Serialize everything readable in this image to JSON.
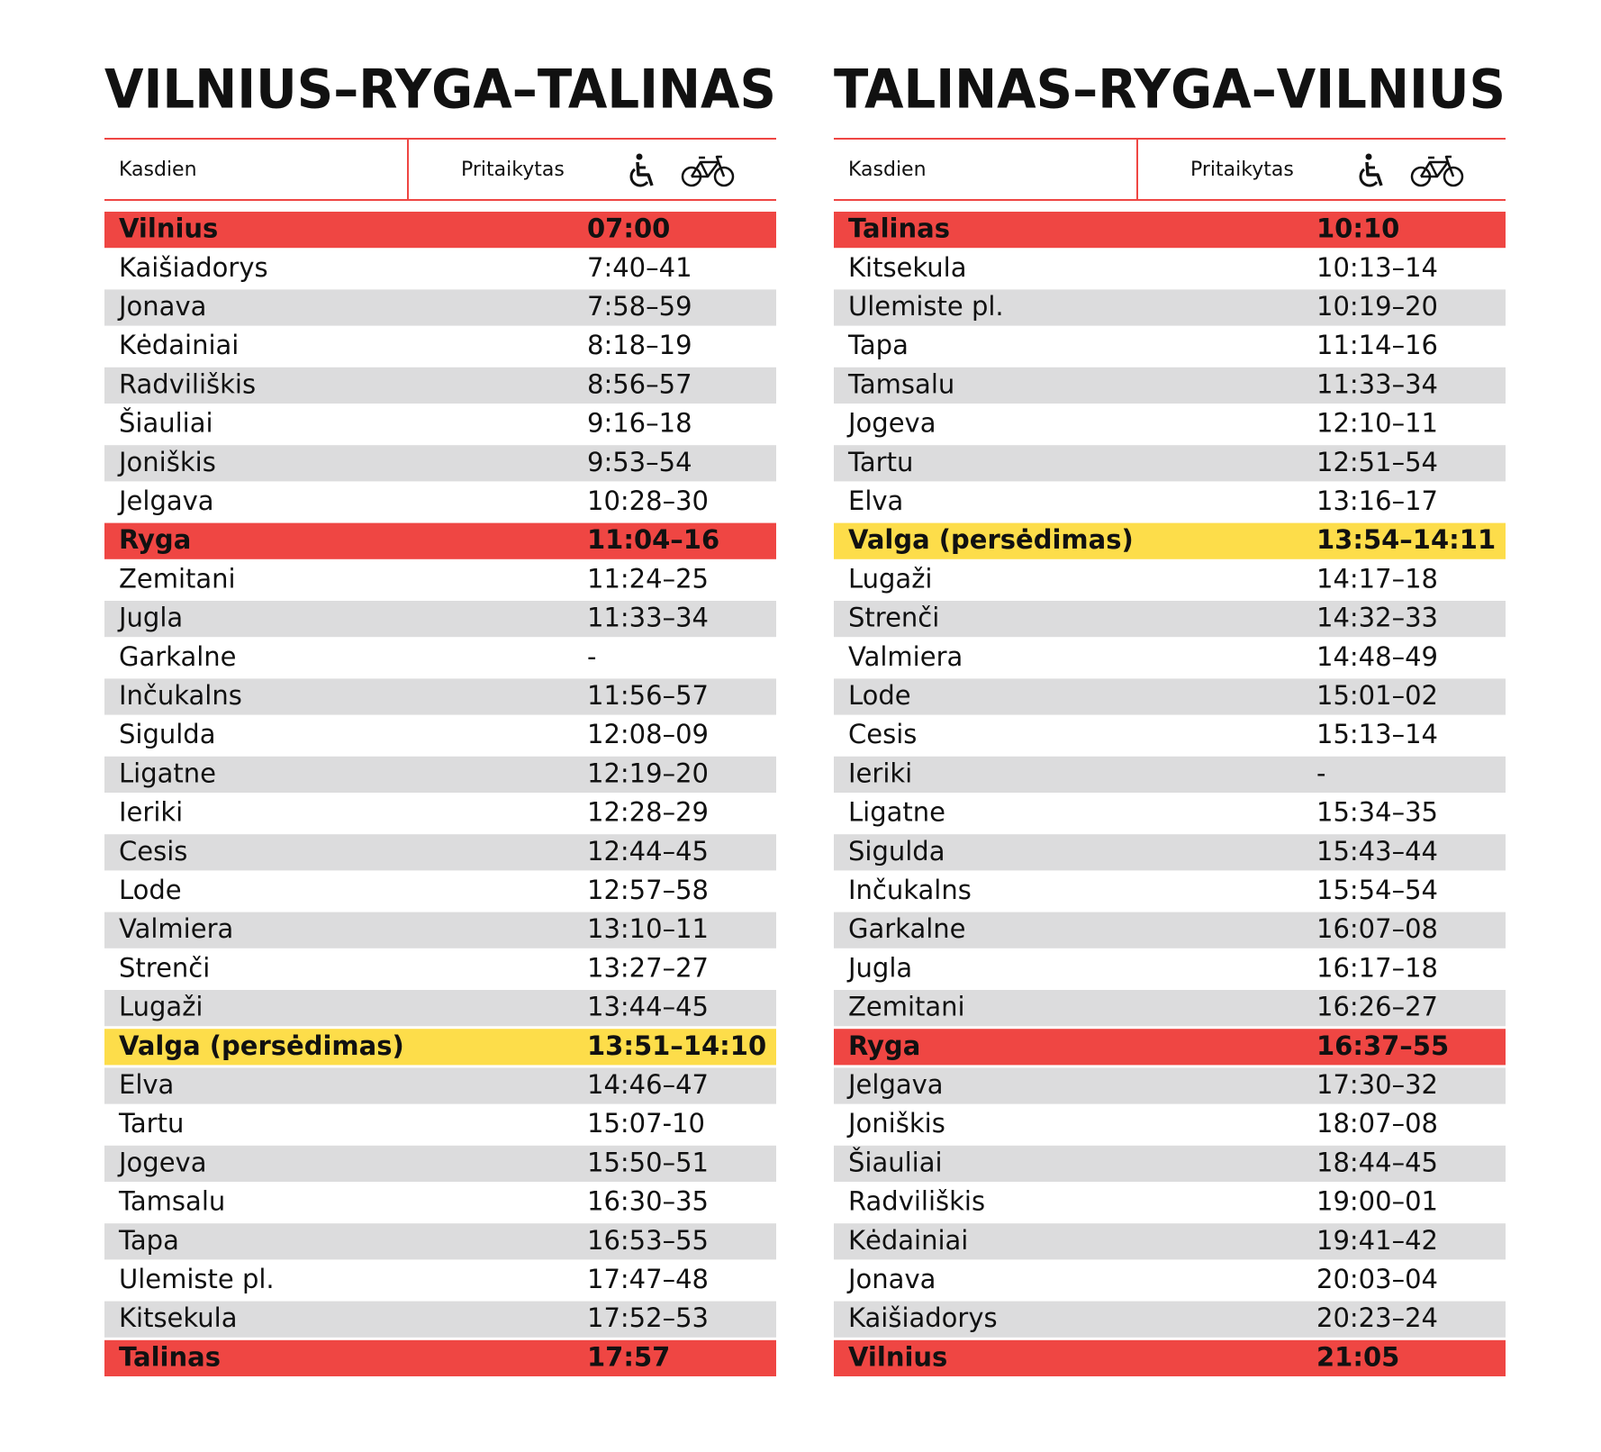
{
  "tables": [
    {
      "title": "VILNIUS–RYGA–TALINAS",
      "header": {
        "days": "Kasdien",
        "accessible": "Pritaikytas"
      },
      "rows": [
        {
          "station": "Vilnius",
          "time": "07:00",
          "fill": "#ef4643"
        },
        {
          "station": "Kaišiadorys",
          "time": "7:40–41"
        },
        {
          "station": "Jonava",
          "time": "7:58–59"
        },
        {
          "station": "Kėdainiai",
          "time": "8:18–19"
        },
        {
          "station": "Radviliškis",
          "time": "8:56–57"
        },
        {
          "station": "Šiauliai",
          "time": "9:16–18"
        },
        {
          "station": "Joniškis",
          "time": "9:53–54"
        },
        {
          "station": "Jelgava",
          "time": "10:28–30"
        },
        {
          "station": "Ryga",
          "time": "11:04–16",
          "fill": "#ef4643"
        },
        {
          "station": "Zemitani",
          "time": "11:24–25"
        },
        {
          "station": "Jugla",
          "time": "11:33–34"
        },
        {
          "station": "Garkalne",
          "time": "-"
        },
        {
          "station": "Inčukalns",
          "time": "11:56–57"
        },
        {
          "station": "Sigulda",
          "time": "12:08–09"
        },
        {
          "station": "Ligatne",
          "time": "12:19–20"
        },
        {
          "station": "Ieriki",
          "time": "12:28–29"
        },
        {
          "station": "Cesis",
          "time": "12:44–45"
        },
        {
          "station": "Lode",
          "time": "12:57–58"
        },
        {
          "station": "Valmiera",
          "time": "13:10–11"
        },
        {
          "station": "Strenči",
          "time": "13:27–27"
        },
        {
          "station": "Lugaži",
          "time": "13:44–45"
        },
        {
          "station": "Valga (persėdimas)",
          "time": "13:51–14:10",
          "fill": "#fddd4a"
        },
        {
          "station": "Elva",
          "time": "14:46–47"
        },
        {
          "station": "Tartu",
          "time": "15:07-10"
        },
        {
          "station": "Jogeva",
          "time": "15:50–51"
        },
        {
          "station": "Tamsalu",
          "time": "16:30–35"
        },
        {
          "station": "Tapa",
          "time": "16:53–55"
        },
        {
          "station": "Ulemiste pl.",
          "time": "17:47–48"
        },
        {
          "station": "Kitsekula",
          "time": "17:52–53"
        },
        {
          "station": "Talinas",
          "time": "17:57",
          "fill": "#ef4643"
        }
      ]
    },
    {
      "title": "TALINAS–RYGA–VILNIUS",
      "header": {
        "days": "Kasdien",
        "accessible": "Pritaikytas"
      },
      "rows": [
        {
          "station": "Talinas",
          "time": "10:10",
          "fill": "#ef4643"
        },
        {
          "station": "Kitsekula",
          "time": "10:13–14"
        },
        {
          "station": "Ulemiste pl.",
          "time": "10:19–20"
        },
        {
          "station": "Tapa",
          "time": "11:14–16"
        },
        {
          "station": "Tamsalu",
          "time": "11:33–34"
        },
        {
          "station": "Jogeva",
          "time": "12:10–11"
        },
        {
          "station": "Tartu",
          "time": "12:51–54"
        },
        {
          "station": "Elva",
          "time": "13:16–17"
        },
        {
          "station": "Valga (persėdimas)",
          "time": "13:54–14:11",
          "fill": "#fddd4a"
        },
        {
          "station": "Lugaži",
          "time": "14:17–18"
        },
        {
          "station": "Strenči",
          "time": "14:32–33"
        },
        {
          "station": "Valmiera",
          "time": "14:48–49"
        },
        {
          "station": "Lode",
          "time": "15:01–02"
        },
        {
          "station": "Cesis",
          "time": "15:13–14"
        },
        {
          "station": "Ieriki",
          "time": "-"
        },
        {
          "station": "Ligatne",
          "time": "15:34–35"
        },
        {
          "station": "Sigulda",
          "time": "15:43–44"
        },
        {
          "station": "Inčukalns",
          "time": "15:54–54"
        },
        {
          "station": "Garkalne",
          "time": "16:07–08"
        },
        {
          "station": "Jugla",
          "time": "16:17–18"
        },
        {
          "station": "Zemitani",
          "time": "16:26–27"
        },
        {
          "station": "Ryga",
          "time": "16:37–55",
          "fill": "#ef4643"
        },
        {
          "station": "Jelgava",
          "time": "17:30–32"
        },
        {
          "station": "Joniškis",
          "time": "18:07–08"
        },
        {
          "station": "Šiauliai",
          "time": "18:44–45"
        },
        {
          "station": "Radviliškis",
          "time": "19:00–01"
        },
        {
          "station": "Kėdainiai",
          "time": "19:41–42"
        },
        {
          "station": "Jonava",
          "time": "20:03–04"
        },
        {
          "station": "Kaišiadorys",
          "time": "20:23–24"
        },
        {
          "station": "Vilnius",
          "time": "21:05",
          "fill": "#ef4643"
        }
      ]
    }
  ]
}
